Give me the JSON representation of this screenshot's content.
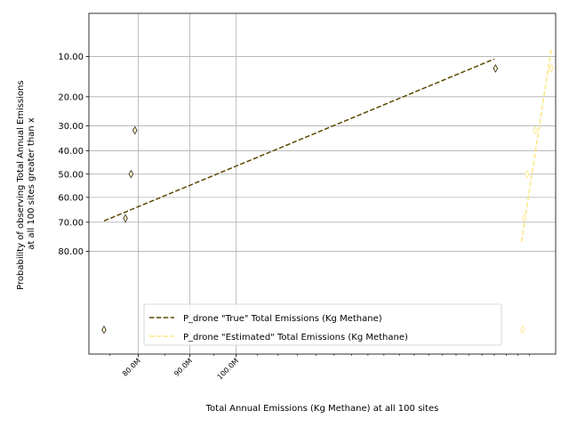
{
  "chart_data": {
    "type": "scatter",
    "xlabel": "Total Annual Emissions (Kg Methane) at all 100 sites",
    "ylabel_lines": [
      "Probability of observing Total Annual Emissions",
      "at all 100 sites greater than x"
    ],
    "x_scale": "log",
    "y_scale": "probit",
    "xlim": [
      71500000,
      207000000
    ],
    "ylim": [
      0.975,
      0.04
    ],
    "x_ticks": [
      {
        "value": 80000000,
        "label": "80.0M"
      },
      {
        "value": 90000000,
        "label": "90.0M"
      },
      {
        "value": 100000000,
        "label": "100.0M"
      }
    ],
    "x_minor_ticks": [
      70000000,
      200000000
    ],
    "y_ticks": [
      {
        "value": 0.1,
        "label": "10.00"
      },
      {
        "value": 0.2,
        "label": "20.00"
      },
      {
        "value": 0.3,
        "label": "30.00"
      },
      {
        "value": 0.4,
        "label": "40.00"
      },
      {
        "value": 0.5,
        "label": "50.00"
      },
      {
        "value": 0.6,
        "label": "60.00"
      },
      {
        "value": 0.7,
        "label": "70.00"
      },
      {
        "value": 0.8,
        "label": "80.00"
      }
    ],
    "grid": true,
    "legend_position": "bottom-center",
    "series": [
      {
        "name": "P_drone \"True\" Total Emissions (Kg Methane)",
        "color": "#5c4800",
        "fit_line": {
          "x": [
            74000000,
            180000000
          ],
          "y": [
            0.695,
            0.105
          ]
        },
        "points": [
          {
            "x": 74000000,
            "y": 0.955
          },
          {
            "x": 77700000,
            "y": 0.685
          },
          {
            "x": 78700000,
            "y": 0.5
          },
          {
            "x": 79400000,
            "y": 0.317
          },
          {
            "x": 180500000,
            "y": 0.125
          }
        ]
      },
      {
        "name": "P_drone \"Estimated\" Total Emissions (Kg Methane)",
        "color": "#ffe680",
        "fit_line": {
          "x": [
            191500000,
            205000000
          ],
          "y": [
            0.77,
            0.085
          ]
        },
        "points": [
          {
            "x": 192000000,
            "y": 0.955
          },
          {
            "x": 192700000,
            "y": 0.685
          },
          {
            "x": 194000000,
            "y": 0.5
          },
          {
            "x": 197500000,
            "y": 0.317
          },
          {
            "x": 205000000,
            "y": 0.125
          }
        ]
      }
    ]
  }
}
